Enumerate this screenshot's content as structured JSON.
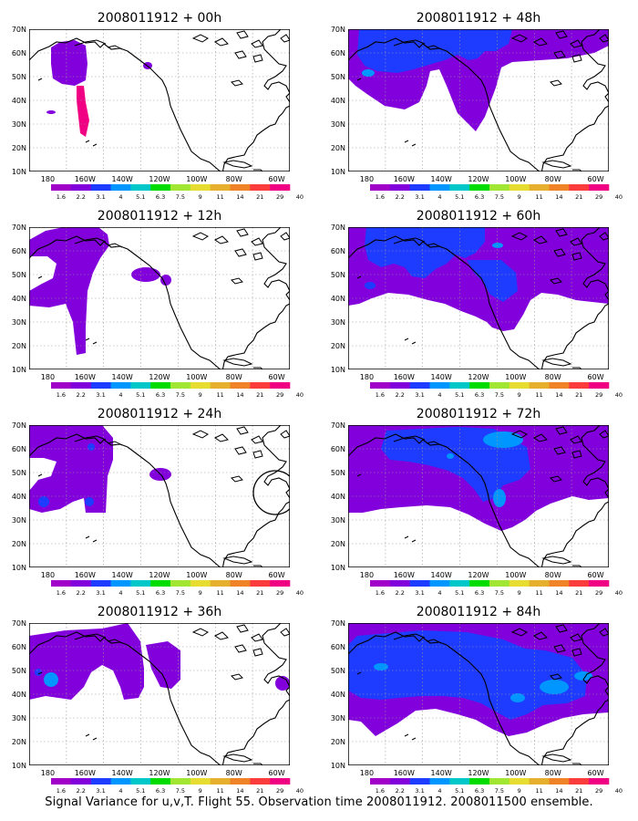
{
  "caption": "Signal Variance for u,v,T. Flight 55. Observation time 2008011912. 2008011500 ensemble.",
  "palette": {
    "values": [
      "1.6",
      "2.2",
      "3.1",
      "4",
      "5.1",
      "6.3",
      "7.5",
      "9",
      "11",
      "14",
      "21",
      "29",
      "40"
    ],
    "colors": [
      "#a000c8",
      "#8200dc",
      "#1e3cff",
      "#0096ff",
      "#00c8c8",
      "#00dc00",
      "#a0e632",
      "#e6dc32",
      "#e6af2d",
      "#f08228",
      "#fa3c3c",
      "#f00082"
    ]
  },
  "axes": {
    "lat_labels": [
      "70N",
      "60N",
      "50N",
      "40N",
      "30N",
      "20N",
      "10N"
    ],
    "lon_labels": [
      "180",
      "160W",
      "140W",
      "120W",
      "100W",
      "80W",
      "60W"
    ]
  },
  "panels": [
    {
      "title": "2008011912 + 00h"
    },
    {
      "title": "2008011912 + 48h"
    },
    {
      "title": "2008011912 + 12h"
    },
    {
      "title": "2008011912 + 60h"
    },
    {
      "title": "2008011912 + 24h"
    },
    {
      "title": "2008011912 + 72h"
    },
    {
      "title": "2008011912 + 36h"
    },
    {
      "title": "2008011912 + 84h"
    }
  ]
}
